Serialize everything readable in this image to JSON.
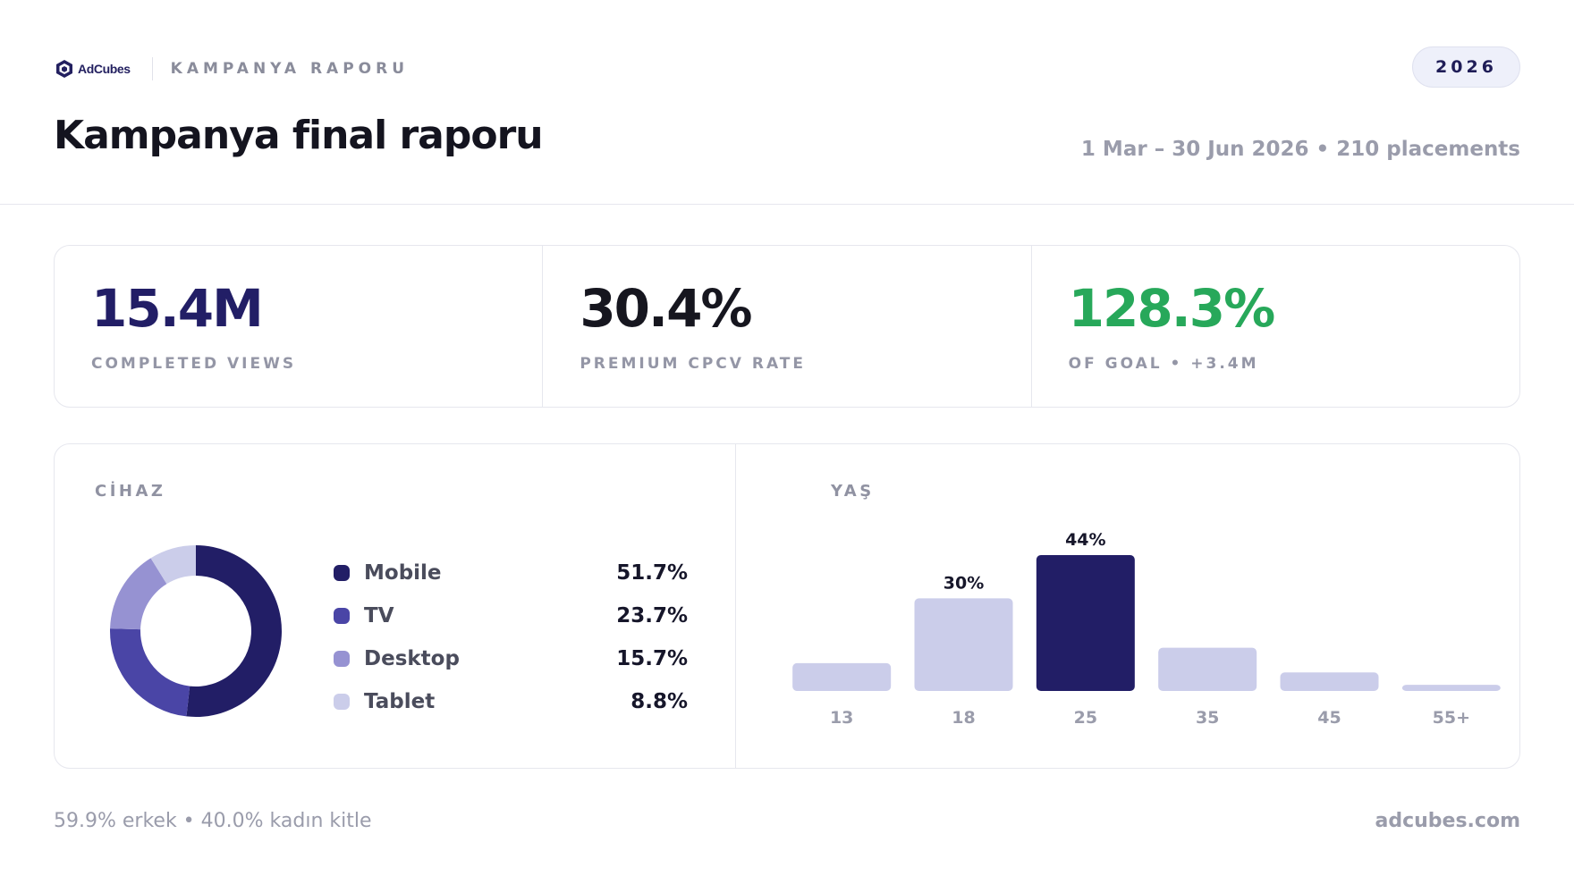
{
  "header": {
    "brand": "AdCubes",
    "report_label": "KAMPANYA RAPORU",
    "year": "2026",
    "title": "Kampanya final raporu",
    "subtitle": "1 Mar – 30 Jun 2026 • 210 placements"
  },
  "kpis": [
    {
      "value": "15.4M",
      "label": "COMPLETED VIEWS",
      "color": "#221e66"
    },
    {
      "value": "30.4%",
      "label": "PREMIUM CPCV RATE",
      "color": "#16161f"
    },
    {
      "value": "128.3%",
      "label": "OF GOAL • +3.4M",
      "color": "#27a85a"
    }
  ],
  "chart_data": [
    {
      "type": "pie",
      "title": "CİHAZ",
      "categories": [
        "Mobile",
        "TV",
        "Desktop",
        "Tablet"
      ],
      "values": [
        51.7,
        23.7,
        15.7,
        8.8
      ],
      "value_labels": [
        "51.7%",
        "23.7%",
        "15.7%",
        "8.8%"
      ],
      "colors": [
        "#221e66",
        "#4a45a6",
        "#9692d2",
        "#cbcdea"
      ],
      "donut": true,
      "legend": "right"
    },
    {
      "type": "bar",
      "title": "YAŞ",
      "categories": [
        "13",
        "18",
        "25",
        "35",
        "45",
        "55+"
      ],
      "values": [
        9,
        30,
        44,
        14,
        6,
        2
      ],
      "data_labels": [
        "",
        "30%",
        "44%",
        "",
        "",
        ""
      ],
      "highlight_index": 2,
      "colors": {
        "base": "#cbcdea",
        "highlight": "#221e66"
      },
      "ylim": [
        0,
        44
      ],
      "grid": false
    }
  ],
  "footer": {
    "audience": "59.9% erkek • 40.0% kadın kitle",
    "site": "adcubes.com"
  }
}
